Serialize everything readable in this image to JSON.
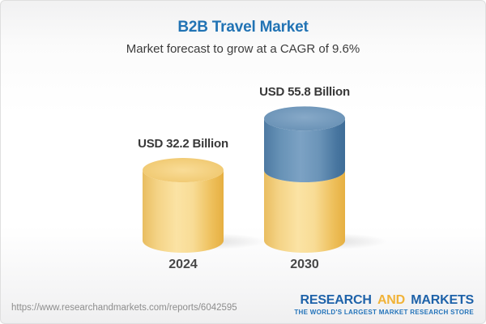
{
  "header": {
    "title": "B2B Travel Market",
    "subtitle": "Market forecast to grow at a CAGR of 9.6%"
  },
  "chart_data": {
    "type": "bar",
    "style": "3d-cylinder",
    "title": "B2B Travel Market",
    "subtitle": "Market forecast to grow at a CAGR of 9.6%",
    "cagr_percent": 9.6,
    "unit": "USD Billion",
    "categories": [
      "2024",
      "2030"
    ],
    "values": [
      32.2,
      55.8
    ],
    "value_labels": [
      "USD 32.2 Billion",
      "USD 55.8 Billion"
    ],
    "bars": [
      {
        "category": "2024",
        "total": 32.2,
        "segments": [
          {
            "value": 32.2,
            "color_scheme": "gold"
          }
        ]
      },
      {
        "category": "2030",
        "total": 55.8,
        "segments": [
          {
            "value": 32.2,
            "color_scheme": "gold"
          },
          {
            "value": 23.6,
            "color_scheme": "blue"
          }
        ]
      }
    ],
    "colors": {
      "gold": "#f2c96f",
      "blue": "#5d89b0",
      "title_blue": "#2173b4"
    },
    "legend": "none",
    "grid": "off"
  },
  "footer": {
    "url": "https://www.researchandmarkets.com/reports/6042595",
    "logo": {
      "part1": "RESEARCH",
      "part2": "AND",
      "part3": "MARKETS",
      "tagline": "THE WORLD'S LARGEST MARKET RESEARCH STORE"
    }
  }
}
